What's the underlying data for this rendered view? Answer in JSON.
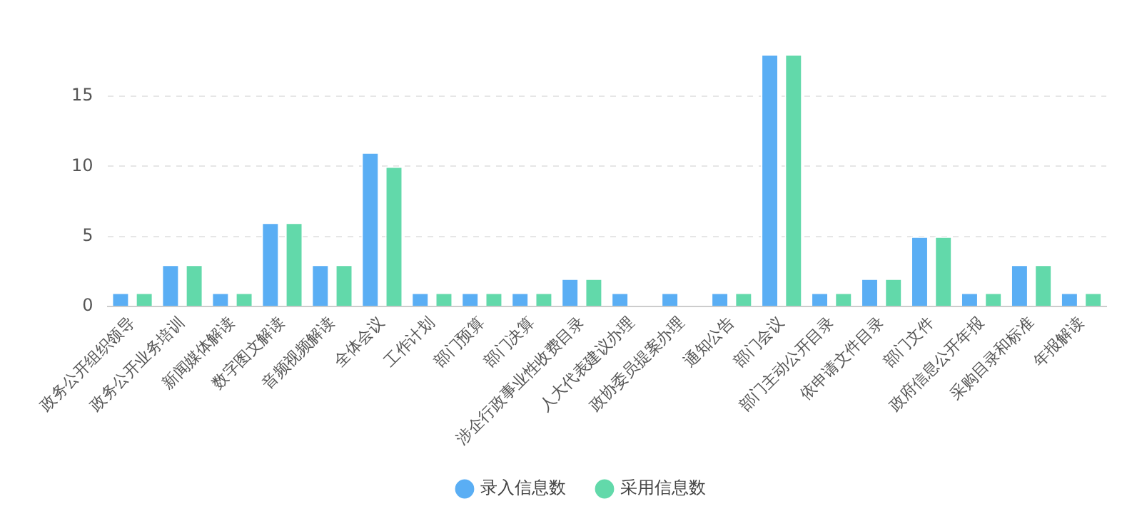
{
  "chart_data": {
    "type": "bar",
    "categories": [
      "政务公开组织领导",
      "政务公开业务培训",
      "新闻媒体解读",
      "数字图文解读",
      "音频视频解读",
      "全体会议",
      "工作计划",
      "部门预算",
      "部门决算",
      "涉企行政事业性收费目录",
      "人大代表建议办理",
      "政协委员提案办理",
      "通知公告",
      "部门会议",
      "部门主动公开目录",
      "依申请文件目录",
      "部门文件",
      "政府信息公开年报",
      "采购目录和标准",
      "年报解读"
    ],
    "series": [
      {
        "name": "录入信息数",
        "color": "#5aaef4",
        "values": [
          1,
          3,
          1,
          6,
          3,
          11,
          1,
          1,
          1,
          2,
          1,
          1,
          1,
          18,
          1,
          2,
          5,
          1,
          3,
          1
        ]
      },
      {
        "name": "采用信息数",
        "color": "#62d9aa",
        "values": [
          1,
          3,
          1,
          6,
          3,
          10,
          1,
          1,
          1,
          2,
          0,
          0,
          1,
          18,
          1,
          2,
          5,
          1,
          3,
          1
        ]
      }
    ],
    "ylim": [
      0,
      18
    ],
    "yticks": [
      0,
      5,
      10,
      15
    ],
    "grid": "y",
    "legend": "bottom"
  }
}
